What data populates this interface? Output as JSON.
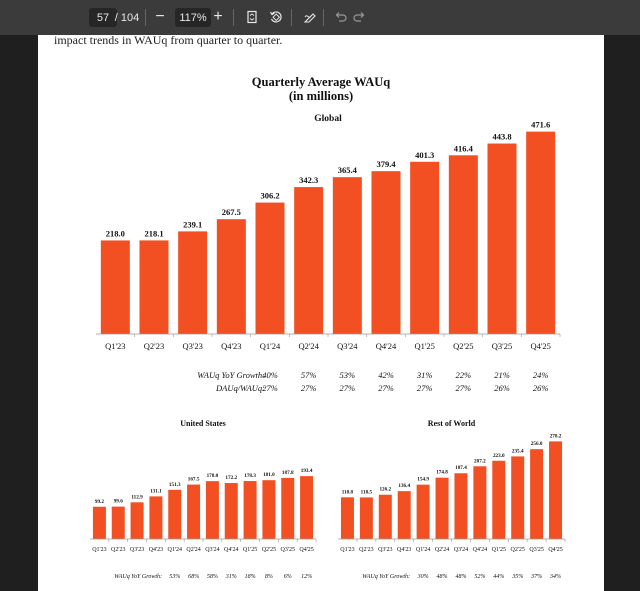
{
  "toolbar": {
    "page_current": "57",
    "page_total": "/ 104",
    "zoom": "117%",
    "zoom_out_symbol": "−",
    "zoom_in_symbol": "+",
    "icons": [
      "fit-page-icon",
      "rotate-icon",
      "draw-icon",
      "undo-icon",
      "redo-icon"
    ]
  },
  "document": {
    "lead_text": "impact trends in WAUq from quarter to quarter.",
    "title_line1": "Quarterly Average WAUq",
    "title_line2": "(in millions)"
  },
  "colors": {
    "bar": "#f25022",
    "text": "#111111"
  },
  "chart_data": [
    {
      "type": "bar",
      "title": "Global",
      "categories": [
        "Q1'23",
        "Q2'23",
        "Q3'23",
        "Q4'23",
        "Q1'24",
        "Q2'24",
        "Q3'24",
        "Q4'24",
        "Q1'25",
        "Q2'25",
        "Q3'25",
        "Q4'25"
      ],
      "values": [
        218.0,
        218.1,
        239.1,
        267.5,
        306.2,
        342.3,
        365.4,
        379.4,
        401.3,
        416.4,
        443.8,
        471.6
      ],
      "data_labels": [
        "218.0",
        "218.1",
        "239.1",
        "267.5",
        "306.2",
        "342.3",
        "365.4",
        "379.4",
        "401.3",
        "416.4",
        "443.8",
        "471.6"
      ],
      "ylim": [
        0,
        480
      ],
      "table_rows": [
        {
          "label": "WAUq YoY Growth:",
          "values": [
            "40%",
            "57%",
            "53%",
            "42%",
            "31%",
            "22%",
            "21%",
            "24%"
          ]
        },
        {
          "label": "DAUq/WAUq:",
          "values": [
            "27%",
            "27%",
            "27%",
            "27%",
            "27%",
            "27%",
            "26%",
            "26%"
          ]
        }
      ]
    },
    {
      "type": "bar",
      "title": "United States",
      "categories": [
        "Q1'23",
        "Q2'23",
        "Q3'23",
        "Q4'23",
        "Q1'24",
        "Q2'24",
        "Q3'24",
        "Q4'24",
        "Q1'25",
        "Q2'25",
        "Q3'25",
        "Q4'25"
      ],
      "values": [
        99.2,
        99.6,
        112.9,
        131.1,
        151.3,
        167.5,
        178.0,
        172.2,
        178.3,
        181.0,
        187.8,
        193.4
      ],
      "data_labels": [
        "99.2",
        "99.6",
        "112.9",
        "131.1",
        "151.3",
        "167.5",
        "178.0",
        "172.2",
        "178.3",
        "181.0",
        "187.8",
        "193.4"
      ],
      "ylim": [
        0,
        200
      ],
      "table_rows": [
        {
          "label": "WAUq YoY Growth:",
          "values": [
            "53%",
            "68%",
            "58%",
            "31%",
            "18%",
            "8%",
            "6%",
            "12%"
          ]
        }
      ]
    },
    {
      "type": "bar",
      "title": "Rest of World",
      "categories": [
        "Q1'23",
        "Q2'23",
        "Q3'23",
        "Q4'23",
        "Q1'24",
        "Q2'24",
        "Q3'24",
        "Q4'24",
        "Q1'25",
        "Q2'25",
        "Q3'25",
        "Q4'25"
      ],
      "values": [
        118.8,
        118.5,
        126.2,
        136.4,
        154.9,
        174.8,
        187.4,
        207.2,
        223.0,
        235.4,
        256.0,
        278.2
      ],
      "data_labels": [
        "118.8",
        "118.5",
        "126.2",
        "136.4",
        "154.9",
        "174.8",
        "187.4",
        "207.2",
        "223.0",
        "235.4",
        "256.0",
        "278.2"
      ],
      "ylim": [
        0,
        285
      ],
      "table_rows": [
        {
          "label": "WAUq YoY Growth:",
          "values": [
            "30%",
            "48%",
            "48%",
            "52%",
            "44%",
            "35%",
            "37%",
            "34%"
          ]
        }
      ]
    }
  ]
}
